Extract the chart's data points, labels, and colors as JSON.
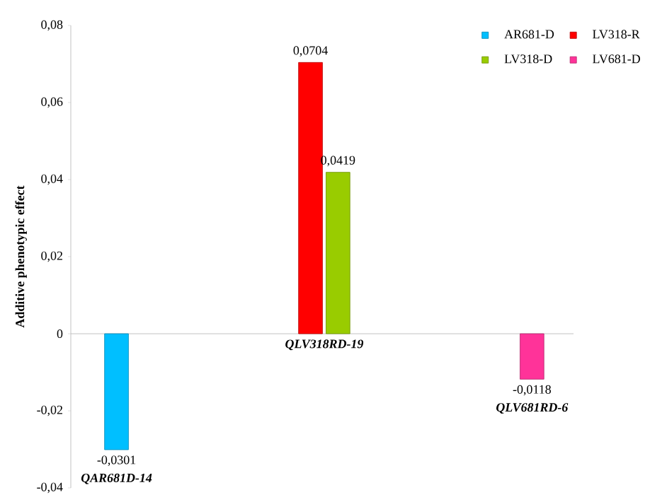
{
  "chart_data": {
    "type": "bar",
    "ylabel": "Additive phenotypic effect",
    "categories": [
      "QAR681D-14",
      "QLV318RD-19",
      "QLV681RD-6"
    ],
    "series": [
      {
        "name": "AR681-D",
        "color": "#00bfff",
        "values": [
          -0.0301,
          null,
          null
        ],
        "value_labels": [
          "-0,0301",
          null,
          null
        ]
      },
      {
        "name": "LV318-R",
        "color": "#ff0000",
        "values": [
          null,
          0.0704,
          null
        ],
        "value_labels": [
          null,
          "0,0704",
          null
        ]
      },
      {
        "name": "LV318-D",
        "color": "#99cc00",
        "values": [
          null,
          0.0419,
          null
        ],
        "value_labels": [
          null,
          "0,0419",
          null
        ]
      },
      {
        "name": "LV681-D",
        "color": "#ff3399",
        "values": [
          null,
          null,
          -0.0118
        ],
        "value_labels": [
          null,
          null,
          "-0,0118"
        ]
      }
    ],
    "ylim": [
      -0.04,
      0.08
    ],
    "yticks": [
      {
        "value": -0.04,
        "label": "-0,04"
      },
      {
        "value": -0.02,
        "label": "-0,02"
      },
      0,
      {
        "value": 0.02,
        "label": "0,02"
      },
      {
        "value": 0.04,
        "label": "0,04"
      },
      {
        "value": 0.06,
        "label": "0,06"
      },
      {
        "value": 0.08,
        "label": "0,08"
      }
    ],
    "legend": "top right"
  }
}
